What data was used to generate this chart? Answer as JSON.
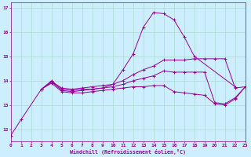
{
  "xlabel": "Windchill (Refroidissement éolien,°C)",
  "background_color": "#cceeff",
  "grid_color": "#aaddcc",
  "line_color": "#990099",
  "xlim": [
    0,
    23
  ],
  "ylim": [
    11.5,
    17.2
  ],
  "yticks": [
    12,
    13,
    14,
    15,
    16,
    17
  ],
  "xticks": [
    0,
    1,
    2,
    3,
    4,
    5,
    6,
    7,
    8,
    9,
    10,
    11,
    12,
    13,
    14,
    15,
    16,
    17,
    18,
    19,
    20,
    21,
    22,
    23
  ],
  "lines": [
    {
      "x": [
        0,
        1,
        3,
        4,
        5,
        6,
        7,
        8,
        9,
        10,
        11,
        12,
        13,
        14,
        15,
        16,
        17,
        18,
        22
      ],
      "y": [
        11.75,
        12.4,
        13.65,
        13.95,
        13.7,
        13.65,
        13.7,
        13.75,
        13.8,
        13.85,
        14.45,
        15.1,
        16.2,
        16.8,
        16.75,
        16.5,
        15.8,
        15.0,
        13.75
      ]
    },
    {
      "x": [
        3,
        4,
        5,
        6,
        7,
        8,
        9,
        10,
        11,
        12,
        13,
        14,
        15,
        16,
        17,
        18,
        19,
        20,
        21,
        22,
        23
      ],
      "y": [
        13.65,
        14.0,
        13.65,
        13.6,
        13.65,
        13.65,
        13.7,
        13.85,
        14.0,
        14.25,
        14.45,
        14.6,
        14.85,
        14.85,
        14.85,
        14.9,
        14.9,
        14.9,
        14.9,
        13.7,
        13.75
      ]
    },
    {
      "x": [
        3,
        4,
        5,
        6,
        7,
        8,
        9,
        10,
        11,
        12,
        13,
        14,
        15,
        16,
        17,
        18,
        19,
        20,
        21,
        22,
        23
      ],
      "y": [
        13.65,
        13.95,
        13.6,
        13.55,
        13.6,
        13.65,
        13.7,
        13.75,
        13.85,
        14.0,
        14.1,
        14.2,
        14.4,
        14.35,
        14.35,
        14.35,
        14.35,
        13.1,
        13.05,
        13.3,
        13.75
      ]
    },
    {
      "x": [
        3,
        4,
        5,
        6,
        7,
        8,
        9,
        10,
        11,
        12,
        13,
        14,
        15,
        16,
        17,
        18,
        19,
        20,
        21,
        22,
        23
      ],
      "y": [
        13.65,
        13.9,
        13.55,
        13.5,
        13.5,
        13.55,
        13.6,
        13.65,
        13.7,
        13.75,
        13.75,
        13.8,
        13.8,
        13.55,
        13.5,
        13.45,
        13.4,
        13.05,
        13.0,
        13.25,
        13.75
      ]
    }
  ],
  "figsize": [
    3.2,
    2.0
  ],
  "dpi": 100
}
